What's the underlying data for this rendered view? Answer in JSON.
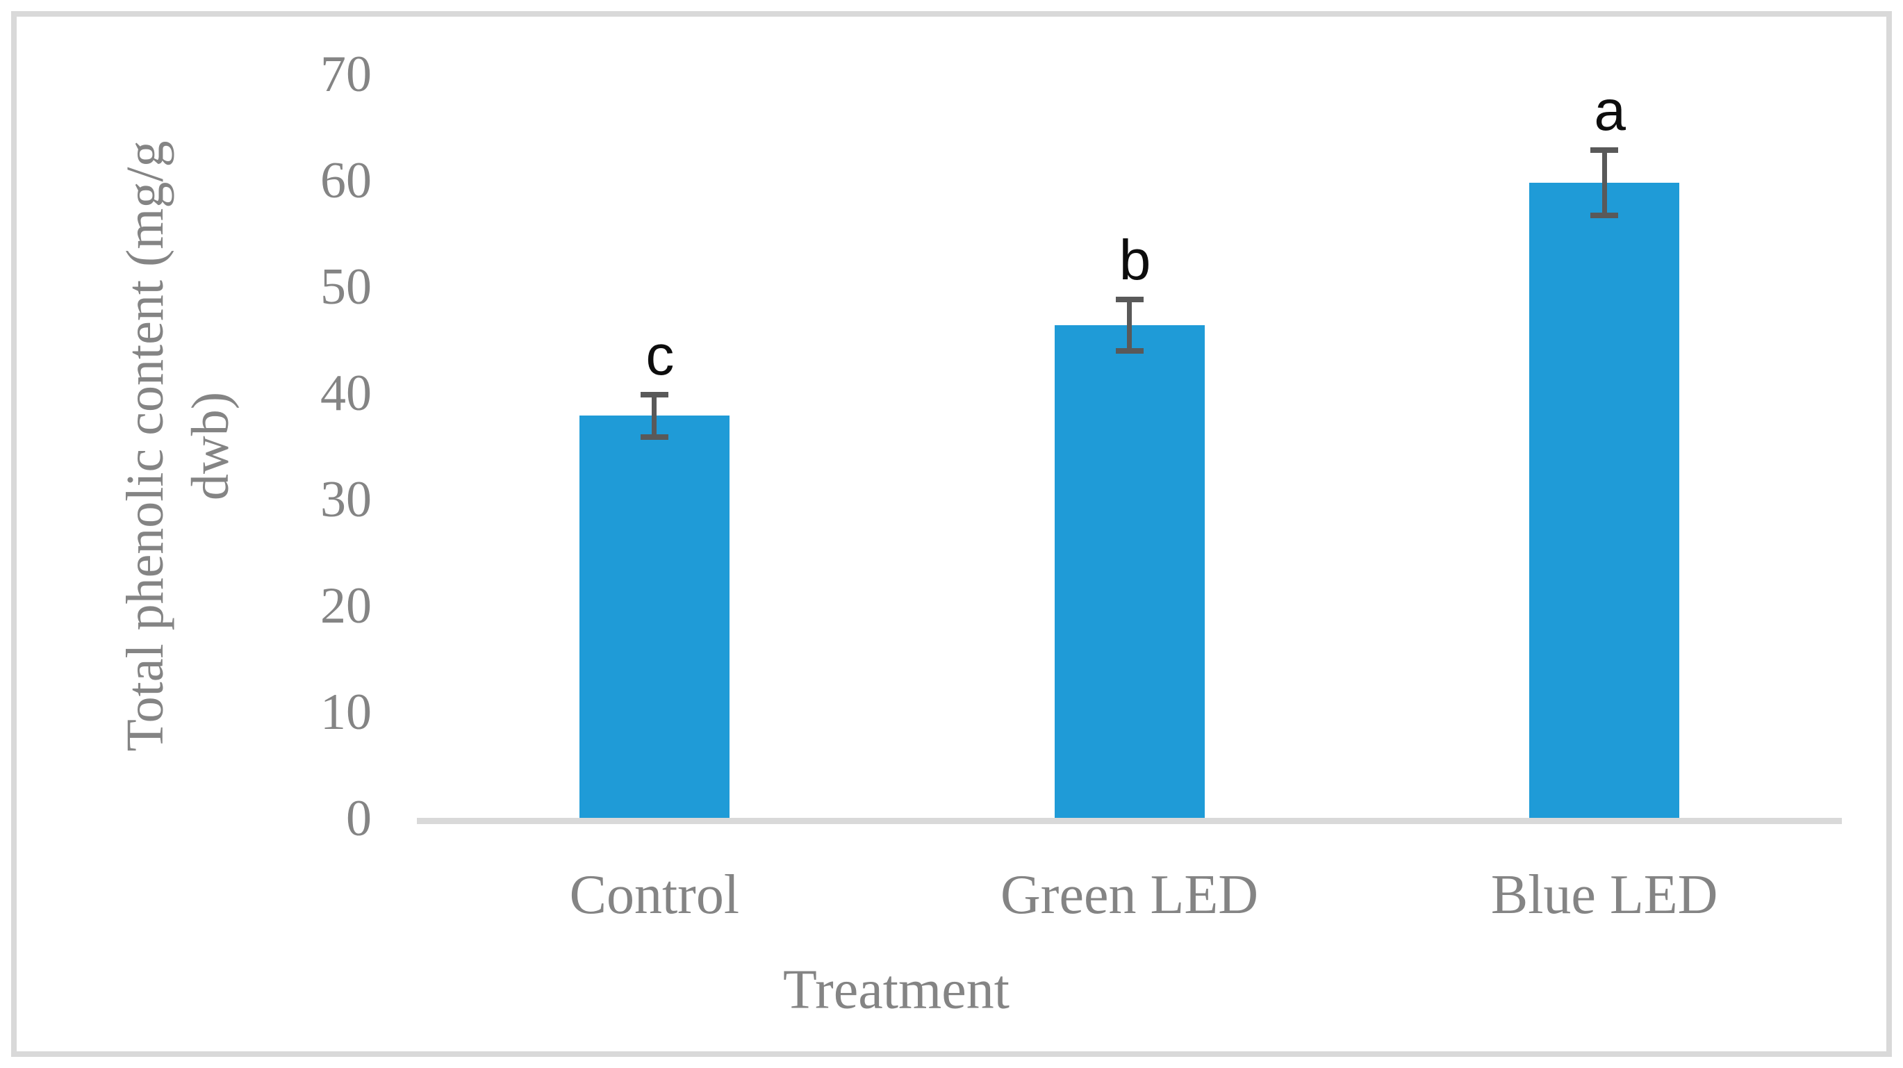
{
  "figure": {
    "background_color": "#FFFFFF",
    "frame_border_color": "#D9D9D9"
  },
  "chart_data": {
    "type": "bar",
    "title": "",
    "categories": [
      "Control",
      "Green LED",
      "Blue LED"
    ],
    "values": [
      37.9,
      46.4,
      59.8
    ],
    "error_bars": [
      2.0,
      2.4,
      3.1
    ],
    "significance_letters": [
      "c",
      "b",
      "a"
    ],
    "xlabel": "Treatment",
    "ylabel": "Total phenolic content (mg/g dwb)",
    "ylabel_lines": [
      "Total phenolic content  (mg/g",
      "dwb)"
    ],
    "yticks": [
      0,
      10,
      20,
      30,
      40,
      50,
      60,
      70
    ],
    "ylim": [
      0,
      70
    ],
    "grid": false,
    "legend_position": "none",
    "bar_color": "#1F9BD7",
    "error_bar_color": "#595959",
    "axis_line_color": "#D9D9D9",
    "axis_text_color": "#848484",
    "letter_color": "#0D0D0D"
  }
}
